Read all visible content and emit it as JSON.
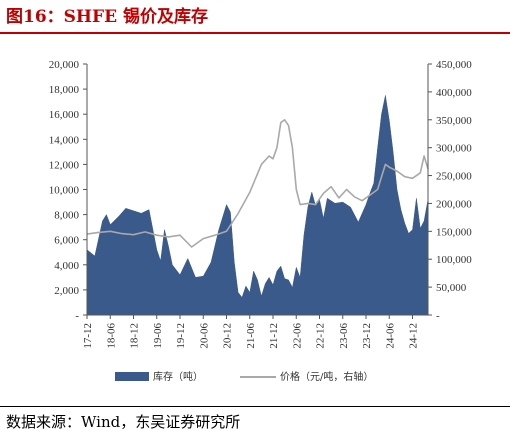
{
  "header": {
    "title": "图16：SHFE 锡价及库存"
  },
  "source": {
    "text": "数据来源：Wind，东吴证券研究所"
  },
  "colors": {
    "title": "#c00000",
    "inventory": "#3a5a8c",
    "price": "#a9a9a9"
  },
  "chart_data": {
    "type": "area",
    "x_tick_labels": [
      "17-12",
      "18-06",
      "18-12",
      "19-06",
      "19-12",
      "20-06",
      "20-12",
      "21-06",
      "21-12",
      "22-06",
      "22-12",
      "23-06",
      "23-12",
      "24-06",
      "24-12"
    ],
    "x_range": [
      "2017-12",
      "2025-04"
    ],
    "y_left": {
      "ylim": [
        0,
        20000
      ],
      "ticks": [
        "-",
        "2,000",
        "4,000",
        "6,000",
        "8,000",
        "10,000",
        "12,000",
        "14,000",
        "16,000",
        "18,000",
        "20,000"
      ]
    },
    "y_right": {
      "ylim": [
        0,
        450000
      ],
      "ticks": [
        "-",
        "50,000",
        "100,000",
        "150,000",
        "200,000",
        "250,000",
        "300,000",
        "350,000",
        "400,000",
        "450,000"
      ]
    },
    "legend": {
      "placement": "bottom"
    },
    "series": [
      {
        "name": "库存（吨）",
        "type": "area",
        "axis": "left",
        "x": [
          "2017-12",
          "2018-02",
          "2018-04",
          "2018-05",
          "2018-06",
          "2018-08",
          "2018-10",
          "2018-12",
          "2019-02",
          "2019-04",
          "2019-06",
          "2019-07",
          "2019-08",
          "2019-09",
          "2019-10",
          "2019-12",
          "2020-02",
          "2020-04",
          "2020-06",
          "2020-08",
          "2020-10",
          "2020-12",
          "2021-01",
          "2021-02",
          "2021-03",
          "2021-04",
          "2021-05",
          "2021-06",
          "2021-07",
          "2021-08",
          "2021-09",
          "2021-10",
          "2021-11",
          "2021-12",
          "2022-01",
          "2022-02",
          "2022-03",
          "2022-04",
          "2022-05",
          "2022-06",
          "2022-07",
          "2022-08",
          "2022-09",
          "2022-10",
          "2022-11",
          "2022-12",
          "2023-01",
          "2023-02",
          "2023-04",
          "2023-06",
          "2023-08",
          "2023-10",
          "2023-12",
          "2024-01",
          "2024-02",
          "2024-03",
          "2024-04",
          "2024-05",
          "2024-06",
          "2024-07",
          "2024-08",
          "2024-09",
          "2024-10",
          "2024-11",
          "2024-12",
          "2025-01",
          "2025-02",
          "2025-03",
          "2025-04"
        ],
        "values": [
          5200,
          4700,
          7500,
          8000,
          7200,
          7800,
          8500,
          8300,
          8100,
          8400,
          5200,
          4300,
          6800,
          5500,
          4000,
          3200,
          4500,
          3000,
          3100,
          4200,
          6800,
          8800,
          8200,
          4200,
          1800,
          1400,
          2300,
          1800,
          3500,
          2800,
          1500,
          2500,
          3000,
          2400,
          3500,
          3900,
          2900,
          2800,
          2200,
          3800,
          3000,
          6400,
          8600,
          9800,
          8700,
          9200,
          7700,
          9300,
          8900,
          9000,
          8600,
          7400,
          8800,
          9700,
          10500,
          13300,
          16000,
          17500,
          15500,
          13000,
          10000,
          8400,
          7300,
          6500,
          6800,
          9300,
          6900,
          7500,
          9200
        ]
      },
      {
        "name": "价格（元/吨，右轴）",
        "type": "line",
        "axis": "right",
        "x": [
          "2017-12",
          "2018-03",
          "2018-06",
          "2018-09",
          "2018-12",
          "2019-03",
          "2019-06",
          "2019-09",
          "2019-12",
          "2020-03",
          "2020-06",
          "2020-09",
          "2020-12",
          "2021-03",
          "2021-06",
          "2021-09",
          "2021-11",
          "2021-12",
          "2022-01",
          "2022-02",
          "2022-03",
          "2022-04",
          "2022-05",
          "2022-06",
          "2022-07",
          "2022-09",
          "2022-11",
          "2023-01",
          "2023-03",
          "2023-05",
          "2023-07",
          "2023-09",
          "2023-11",
          "2024-01",
          "2024-03",
          "2024-05",
          "2024-06",
          "2024-08",
          "2024-10",
          "2024-12",
          "2025-02",
          "2025-03",
          "2025-04"
        ],
        "values": [
          145000,
          148000,
          150000,
          146000,
          144000,
          149000,
          143000,
          140000,
          143000,
          122000,
          137000,
          143000,
          150000,
          182000,
          220000,
          270000,
          285000,
          280000,
          300000,
          345000,
          350000,
          340000,
          300000,
          225000,
          198000,
          200000,
          198000,
          218000,
          230000,
          210000,
          225000,
          212000,
          205000,
          215000,
          225000,
          270000,
          265000,
          258000,
          248000,
          245000,
          255000,
          285000,
          262000
        ]
      }
    ]
  }
}
